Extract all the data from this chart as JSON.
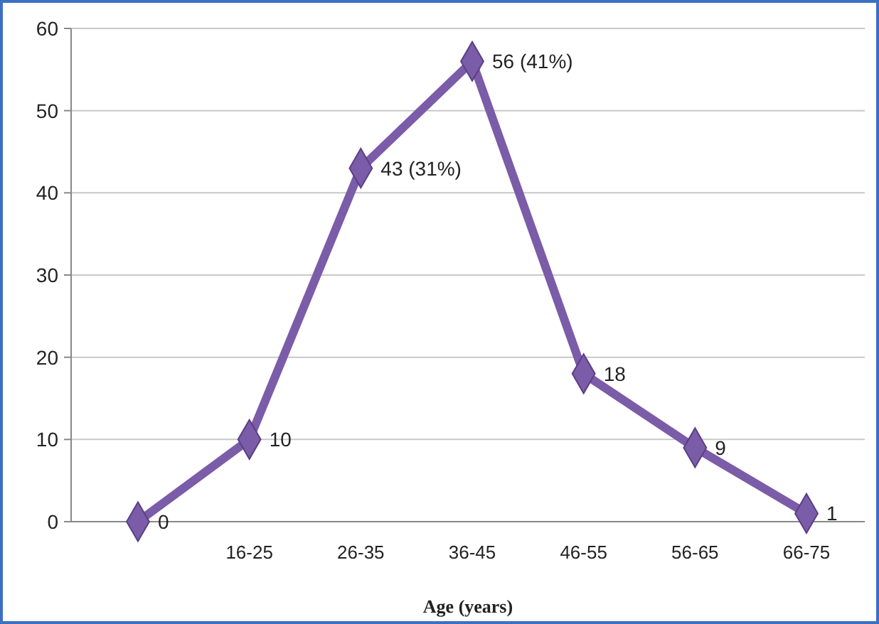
{
  "chart_data": {
    "type": "line",
    "xlabel": "Age (years)",
    "categories": [
      null,
      "16-25",
      "26-35",
      "36-45",
      "46-55",
      "56-65",
      "66-75"
    ],
    "series": [
      {
        "color": "#7b5ca8",
        "values": [
          0,
          10,
          43,
          56,
          18,
          9,
          1
        ],
        "value_labels": [
          "0",
          "10",
          "43 (31%)",
          "56 (41%)",
          "18",
          "9",
          "1"
        ]
      }
    ],
    "ylim": [
      0,
      60
    ],
    "yticks": [
      0,
      10,
      20,
      30,
      40,
      50,
      60
    ],
    "grid": "y",
    "marker": "diamond",
    "line_style": "solid"
  }
}
